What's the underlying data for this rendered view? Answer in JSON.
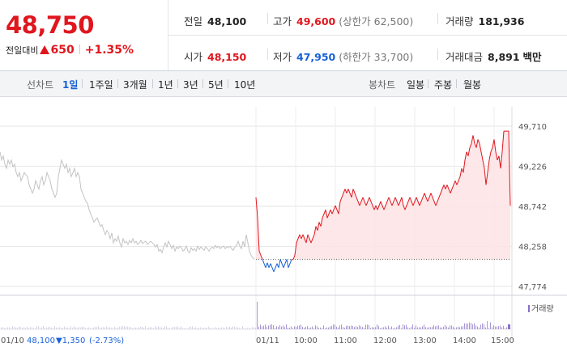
{
  "quote": {
    "price": "48,750",
    "change_label": "전일대비",
    "change_amount": "650",
    "change_rate": "+1.35%",
    "prev_close_label": "전일",
    "prev_close": "48,100",
    "high_label": "고가",
    "high": "49,600",
    "upper_limit": "(상한가 62,500)",
    "volume_label": "거래량",
    "volume": "181,936",
    "open_label": "시가",
    "open": "48,150",
    "low_label": "저가",
    "low": "47,950",
    "lower_limit": "(하한가 33,700)",
    "trade_value_label": "거래대금",
    "trade_value": "8,891",
    "trade_value_unit": "백만"
  },
  "tabs": {
    "line_label": "선차트",
    "line_options": [
      "1일",
      "1주일",
      "3개월",
      "1년",
      "3년",
      "5년",
      "10년"
    ],
    "selected": "1일",
    "candle_label": "봉차트",
    "candle_options": [
      "일봉",
      "주봉",
      "월봉"
    ]
  },
  "colors": {
    "up": "#e0161e",
    "down": "#1961d6",
    "prev_day": "#c3c3c3",
    "fill_up": "#fde3e4",
    "volume": "#8b6fc7"
  },
  "chart_data": {
    "type": "line",
    "y_ticks": [
      "49,710",
      "49,226",
      "48,742",
      "48,258",
      "47,774"
    ],
    "ylim": [
      47774,
      49710
    ],
    "baseline": 48100,
    "x_ticks": [
      "01/10",
      "01/11",
      "10:00",
      "11:00",
      "12:00",
      "13:00",
      "14:00",
      "15:00"
    ],
    "prev_day_note": {
      "date": "01/10",
      "close": "48,100",
      "change": "1,350",
      "rate": "(-2.73%)"
    },
    "volume_legend": "거래량",
    "prev_day_series": [
      [
        0,
        49400
      ],
      [
        2,
        49300
      ],
      [
        4,
        49350
      ],
      [
        6,
        49250
      ],
      [
        8,
        49200
      ],
      [
        10,
        49300
      ],
      [
        12,
        49250
      ],
      [
        14,
        49300
      ],
      [
        16,
        49220
      ],
      [
        18,
        49250
      ],
      [
        20,
        49150
      ],
      [
        22,
        49100
      ],
      [
        24,
        49150
      ],
      [
        26,
        49050
      ],
      [
        28,
        49100
      ],
      [
        30,
        49150
      ],
      [
        32,
        49120
      ],
      [
        34,
        49100
      ],
      [
        36,
        49000
      ],
      [
        38,
        48950
      ],
      [
        40,
        48900
      ],
      [
        42,
        48950
      ],
      [
        44,
        49050
      ],
      [
        46,
        49000
      ],
      [
        48,
        48950
      ],
      [
        50,
        49050
      ],
      [
        52,
        49100
      ],
      [
        54,
        49000
      ],
      [
        56,
        49050
      ],
      [
        58,
        49150
      ],
      [
        60,
        49100
      ],
      [
        62,
        49050
      ],
      [
        64,
        48950
      ],
      [
        66,
        48900
      ],
      [
        68,
        48850
      ],
      [
        70,
        48900
      ],
      [
        72,
        49100
      ],
      [
        74,
        49200
      ],
      [
        76,
        49300
      ],
      [
        78,
        49250
      ],
      [
        80,
        49200
      ],
      [
        82,
        49250
      ],
      [
        84,
        49150
      ],
      [
        86,
        49200
      ],
      [
        88,
        49100
      ],
      [
        90,
        49150
      ],
      [
        92,
        49200
      ],
      [
        94,
        49100
      ],
      [
        96,
        49150
      ],
      [
        98,
        49100
      ],
      [
        100,
        48950
      ],
      [
        102,
        48900
      ],
      [
        104,
        48850
      ],
      [
        106,
        48800
      ],
      [
        108,
        48780
      ],
      [
        110,
        48700
      ],
      [
        112,
        48650
      ],
      [
        114,
        48600
      ],
      [
        116,
        48550
      ],
      [
        118,
        48580
      ],
      [
        120,
        48600
      ],
      [
        122,
        48550
      ],
      [
        124,
        48500
      ],
      [
        126,
        48520
      ],
      [
        128,
        48450
      ],
      [
        130,
        48400
      ],
      [
        132,
        48450
      ],
      [
        134,
        48420
      ],
      [
        136,
        48350
      ],
      [
        138,
        48420
      ],
      [
        140,
        48300
      ],
      [
        142,
        48350
      ],
      [
        144,
        48320
      ],
      [
        146,
        48380
      ],
      [
        148,
        48300
      ],
      [
        150,
        48250
      ],
      [
        152,
        48350
      ],
      [
        154,
        48300
      ],
      [
        156,
        48320
      ],
      [
        158,
        48280
      ],
      [
        160,
        48330
      ],
      [
        162,
        48300
      ],
      [
        164,
        48350
      ],
      [
        166,
        48300
      ],
      [
        168,
        48320
      ],
      [
        170,
        48280
      ],
      [
        172,
        48300
      ],
      [
        174,
        48330
      ],
      [
        176,
        48290
      ],
      [
        178,
        48310
      ],
      [
        180,
        48320
      ],
      [
        182,
        48280
      ],
      [
        184,
        48300
      ],
      [
        186,
        48320
      ],
      [
        188,
        48300
      ],
      [
        190,
        48280
      ],
      [
        192,
        48250
      ],
      [
        194,
        48280
      ],
      [
        196,
        48200
      ],
      [
        198,
        48220
      ],
      [
        200,
        48180
      ],
      [
        202,
        48250
      ],
      [
        204,
        48300
      ],
      [
        206,
        48250
      ],
      [
        208,
        48320
      ],
      [
        210,
        48280
      ],
      [
        212,
        48230
      ],
      [
        214,
        48270
      ],
      [
        216,
        48200
      ],
      [
        218,
        48250
      ],
      [
        220,
        48230
      ],
      [
        222,
        48260
      ],
      [
        224,
        48240
      ],
      [
        226,
        48200
      ],
      [
        228,
        48220
      ],
      [
        230,
        48260
      ],
      [
        232,
        48200
      ],
      [
        234,
        48180
      ],
      [
        236,
        48240
      ],
      [
        238,
        48210
      ],
      [
        240,
        48230
      ],
      [
        242,
        48200
      ],
      [
        244,
        48260
      ],
      [
        246,
        48220
      ],
      [
        248,
        48250
      ],
      [
        250,
        48230
      ],
      [
        252,
        48210
      ],
      [
        254,
        48250
      ],
      [
        256,
        48230
      ],
      [
        258,
        48200
      ],
      [
        260,
        48230
      ],
      [
        262,
        48250
      ],
      [
        264,
        48230
      ],
      [
        266,
        48270
      ],
      [
        268,
        48240
      ],
      [
        270,
        48260
      ],
      [
        272,
        48230
      ],
      [
        274,
        48250
      ],
      [
        276,
        48260
      ],
      [
        278,
        48230
      ],
      [
        280,
        48250
      ],
      [
        282,
        48240
      ],
      [
        284,
        48260
      ],
      [
        286,
        48230
      ],
      [
        288,
        48210
      ],
      [
        290,
        48250
      ],
      [
        292,
        48270
      ],
      [
        294,
        48320
      ],
      [
        296,
        48260
      ],
      [
        298,
        48230
      ],
      [
        300,
        48320
      ],
      [
        302,
        48250
      ],
      [
        304,
        48400
      ],
      [
        306,
        48300
      ],
      [
        308,
        48200
      ],
      [
        310,
        48150
      ],
      [
        312,
        48120
      ],
      [
        314,
        48100
      ]
    ],
    "today_series": [
      [
        316,
        48850
      ],
      [
        318,
        48600
      ],
      [
        320,
        48200
      ],
      [
        322,
        48150
      ],
      [
        324,
        48100
      ],
      [
        326,
        48050
      ],
      [
        328,
        48000
      ],
      [
        330,
        48060
      ],
      [
        332,
        48000
      ],
      [
        334,
        48050
      ],
      [
        336,
        48000
      ],
      [
        338,
        47950
      ],
      [
        340,
        48000
      ],
      [
        342,
        48050
      ],
      [
        344,
        48000
      ],
      [
        346,
        48100
      ],
      [
        348,
        48050
      ],
      [
        350,
        48000
      ],
      [
        352,
        48050
      ],
      [
        354,
        48100
      ],
      [
        356,
        48000
      ],
      [
        358,
        48050
      ],
      [
        360,
        48100
      ],
      [
        362,
        48100
      ],
      [
        364,
        48150
      ],
      [
        366,
        48300
      ],
      [
        368,
        48350
      ],
      [
        370,
        48400
      ],
      [
        372,
        48350
      ],
      [
        374,
        48400
      ],
      [
        376,
        48350
      ],
      [
        378,
        48300
      ],
      [
        380,
        48400
      ],
      [
        382,
        48350
      ],
      [
        384,
        48300
      ],
      [
        386,
        48350
      ],
      [
        388,
        48400
      ],
      [
        390,
        48500
      ],
      [
        392,
        48450
      ],
      [
        394,
        48550
      ],
      [
        396,
        48500
      ],
      [
        398,
        48600
      ],
      [
        400,
        48650
      ],
      [
        402,
        48700
      ],
      [
        404,
        48600
      ],
      [
        406,
        48650
      ],
      [
        408,
        48700
      ],
      [
        410,
        48650
      ],
      [
        412,
        48700
      ],
      [
        414,
        48750
      ],
      [
        416,
        48700
      ],
      [
        418,
        48650
      ],
      [
        420,
        48800
      ],
      [
        422,
        48850
      ],
      [
        424,
        48900
      ],
      [
        426,
        48950
      ],
      [
        428,
        48900
      ],
      [
        430,
        48950
      ],
      [
        432,
        48900
      ],
      [
        434,
        48850
      ],
      [
        436,
        48950
      ],
      [
        438,
        48900
      ],
      [
        440,
        48850
      ],
      [
        442,
        48800
      ],
      [
        444,
        48750
      ],
      [
        446,
        48800
      ],
      [
        448,
        48850
      ],
      [
        450,
        48800
      ],
      [
        452,
        48750
      ],
      [
        454,
        48800
      ],
      [
        456,
        48850
      ],
      [
        458,
        48800
      ],
      [
        460,
        48750
      ],
      [
        462,
        48700
      ],
      [
        464,
        48750
      ],
      [
        466,
        48700
      ],
      [
        468,
        48750
      ],
      [
        470,
        48800
      ],
      [
        472,
        48750
      ],
      [
        474,
        48700
      ],
      [
        476,
        48750
      ],
      [
        478,
        48800
      ],
      [
        480,
        48850
      ],
      [
        482,
        48800
      ],
      [
        484,
        48750
      ],
      [
        486,
        48800
      ],
      [
        488,
        48850
      ],
      [
        490,
        48800
      ],
      [
        492,
        48750
      ],
      [
        494,
        48800
      ],
      [
        496,
        48850
      ],
      [
        498,
        48750
      ],
      [
        500,
        48700
      ],
      [
        502,
        48750
      ],
      [
        504,
        48800
      ],
      [
        506,
        48850
      ],
      [
        508,
        48800
      ],
      [
        510,
        48750
      ],
      [
        512,
        48800
      ],
      [
        514,
        48850
      ],
      [
        516,
        48800
      ],
      [
        518,
        48750
      ],
      [
        520,
        48800
      ],
      [
        522,
        48850
      ],
      [
        524,
        48900
      ],
      [
        526,
        48850
      ],
      [
        528,
        48800
      ],
      [
        530,
        48850
      ],
      [
        532,
        48900
      ],
      [
        534,
        48850
      ],
      [
        536,
        48800
      ],
      [
        538,
        48750
      ],
      [
        540,
        48800
      ],
      [
        542,
        48850
      ],
      [
        544,
        48900
      ],
      [
        546,
        48950
      ],
      [
        548,
        49000
      ],
      [
        550,
        48950
      ],
      [
        552,
        49000
      ],
      [
        554,
        48950
      ],
      [
        556,
        48900
      ],
      [
        558,
        48950
      ],
      [
        560,
        49000
      ],
      [
        562,
        49050
      ],
      [
        564,
        49000
      ],
      [
        566,
        49050
      ],
      [
        568,
        49100
      ],
      [
        570,
        49200
      ],
      [
        572,
        49150
      ],
      [
        574,
        49300
      ],
      [
        576,
        49400
      ],
      [
        578,
        49350
      ],
      [
        580,
        49450
      ],
      [
        582,
        49500
      ],
      [
        584,
        49600
      ],
      [
        586,
        49500
      ],
      [
        588,
        49450
      ],
      [
        590,
        49550
      ],
      [
        592,
        49500
      ],
      [
        594,
        49400
      ],
      [
        596,
        49300
      ],
      [
        598,
        49200
      ],
      [
        600,
        49000
      ],
      [
        602,
        49150
      ],
      [
        604,
        49300
      ],
      [
        606,
        49400
      ],
      [
        608,
        49450
      ],
      [
        610,
        49550
      ],
      [
        612,
        49400
      ],
      [
        614,
        49300
      ],
      [
        616,
        49350
      ],
      [
        618,
        49200
      ],
      [
        620,
        49400
      ],
      [
        622,
        49650
      ],
      [
        624,
        49650
      ],
      [
        626,
        49650
      ],
      [
        628,
        49650
      ],
      [
        630,
        48750
      ]
    ]
  }
}
